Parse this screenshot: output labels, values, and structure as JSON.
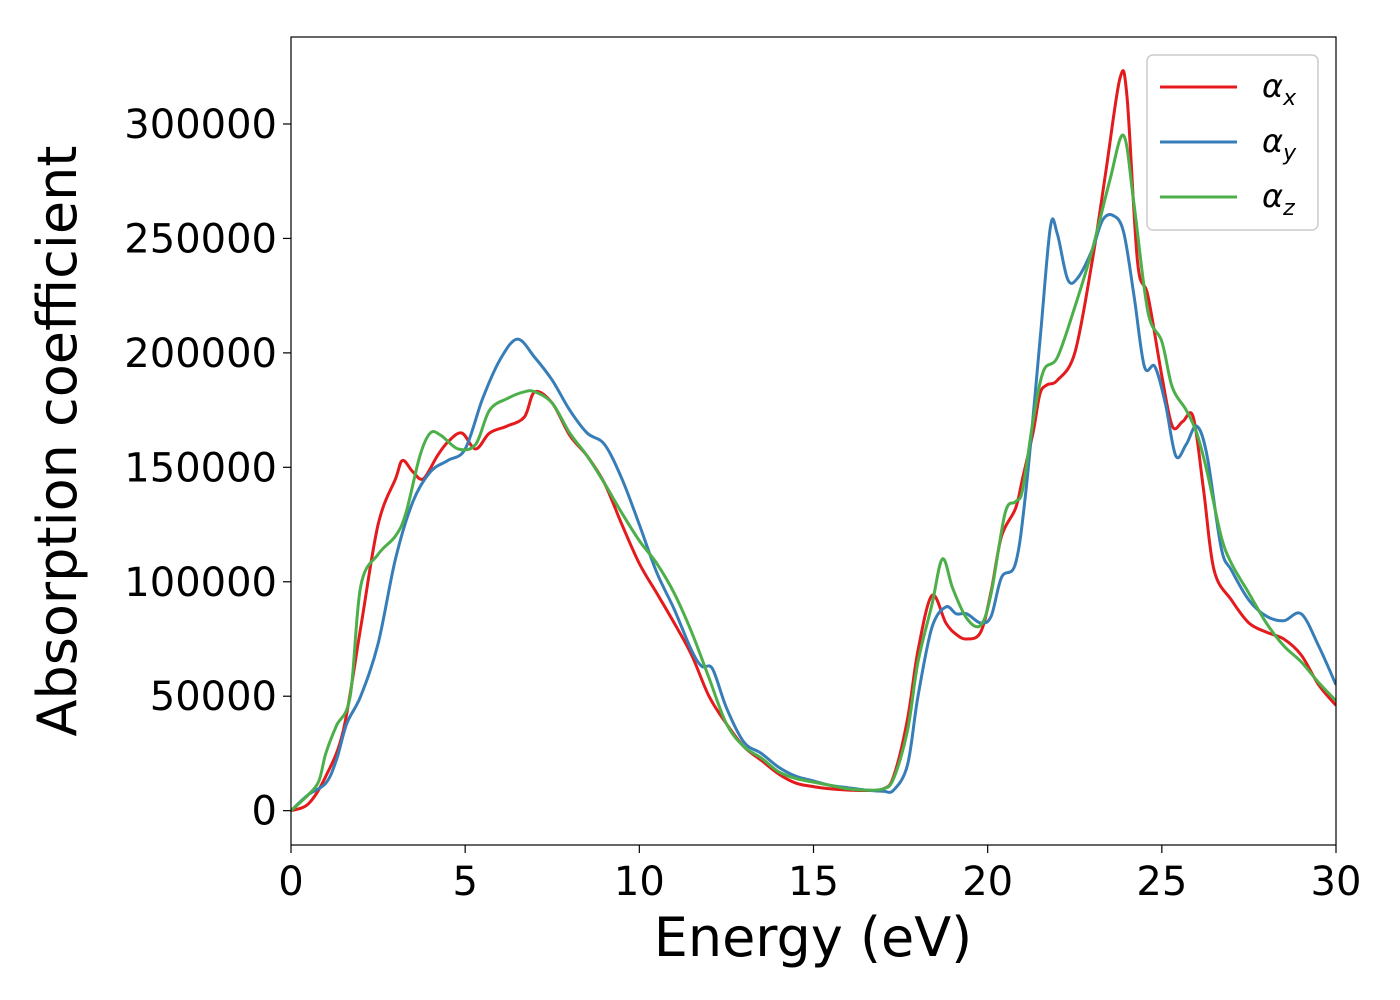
{
  "chart_data": {
    "type": "line",
    "title": "",
    "xlabel": "Energy (eV)",
    "ylabel": "Absorption coefficient",
    "xlim": [
      0,
      30
    ],
    "ylim": [
      -15000,
      338000
    ],
    "xticks": [
      0,
      5,
      10,
      15,
      20,
      25,
      30
    ],
    "yticks": [
      0,
      50000,
      100000,
      150000,
      200000,
      250000,
      300000
    ],
    "grid": false,
    "legend_position": "top-right",
    "series": [
      {
        "name": "αx",
        "symbol": "α",
        "subscript": "x",
        "color": "#e41a1c",
        "x": [
          0,
          0.5,
          1.0,
          1.5,
          2.0,
          2.5,
          3.0,
          3.2,
          3.5,
          3.8,
          4.2,
          4.5,
          4.9,
          5.3,
          5.7,
          6.2,
          6.7,
          7.0,
          7.5,
          8.0,
          8.5,
          9.0,
          9.5,
          10.0,
          10.5,
          11.0,
          11.5,
          12.0,
          12.5,
          13.0,
          13.5,
          14.0,
          14.5,
          15.0,
          15.5,
          16.0,
          16.5,
          17.0,
          17.3,
          17.7,
          18.0,
          18.4,
          18.8,
          19.1,
          19.4,
          19.8,
          20.1,
          20.4,
          20.8,
          21.0,
          21.3,
          21.5,
          21.7,
          22.0,
          22.5,
          23.0,
          23.4,
          23.8,
          24.0,
          24.3,
          24.6,
          25.0,
          25.3,
          25.6,
          25.9,
          26.2,
          26.5,
          27.0,
          27.5,
          28.0,
          28.5,
          29.0,
          29.5,
          30.0
        ],
        "y": [
          0,
          3000,
          15000,
          35000,
          80000,
          125000,
          145000,
          153000,
          148000,
          145000,
          155000,
          161000,
          165000,
          158000,
          165000,
          168000,
          172000,
          183000,
          178000,
          164000,
          155000,
          143000,
          125000,
          108000,
          95000,
          82000,
          68000,
          50000,
          38000,
          28000,
          22000,
          16000,
          12000,
          10500,
          9500,
          9000,
          8800,
          9500,
          15000,
          40000,
          70000,
          94000,
          82000,
          77000,
          75000,
          78000,
          96000,
          120000,
          132000,
          145000,
          165000,
          182000,
          186000,
          188000,
          200000,
          240000,
          280000,
          320000,
          312000,
          240000,
          225000,
          190000,
          168000,
          170000,
          172000,
          140000,
          105000,
          92000,
          82000,
          78000,
          75000,
          68000,
          55000,
          46000
        ]
      },
      {
        "name": "αy",
        "symbol": "α",
        "subscript": "y",
        "color": "#377eb8",
        "x": [
          0,
          0.5,
          1.0,
          1.3,
          1.6,
          2.0,
          2.5,
          3.0,
          3.5,
          4.0,
          4.5,
          5.0,
          5.5,
          6.0,
          6.5,
          7.0,
          7.5,
          8.0,
          8.5,
          9.0,
          9.5,
          10.0,
          10.5,
          11.0,
          11.5,
          11.8,
          12.1,
          12.5,
          13.0,
          13.5,
          14.0,
          14.5,
          15.0,
          15.5,
          16.0,
          16.5,
          17.0,
          17.3,
          17.7,
          18.0,
          18.4,
          18.8,
          19.1,
          19.4,
          19.8,
          20.1,
          20.4,
          20.8,
          21.1,
          21.5,
          21.8,
          22.0,
          22.3,
          22.6,
          23.0,
          23.3,
          23.6,
          23.9,
          24.2,
          24.5,
          24.8,
          25.1,
          25.4,
          25.7,
          26.0,
          26.3,
          26.7,
          27.0,
          27.5,
          28.0,
          28.5,
          29.0,
          29.5,
          30.0
        ],
        "y": [
          0,
          7000,
          12000,
          22000,
          38000,
          50000,
          73000,
          110000,
          135000,
          148000,
          153000,
          158000,
          180000,
          197000,
          206000,
          198000,
          188000,
          175000,
          165000,
          160000,
          145000,
          125000,
          104000,
          88000,
          70000,
          63000,
          62000,
          45000,
          30000,
          25000,
          19000,
          15000,
          13000,
          11000,
          10000,
          9000,
          8500,
          9000,
          20000,
          50000,
          80000,
          89000,
          86000,
          86000,
          82000,
          85000,
          102000,
          108000,
          140000,
          205000,
          255000,
          252000,
          232000,
          233000,
          245000,
          258000,
          260000,
          253000,
          225000,
          194000,
          194000,
          178000,
          155000,
          160000,
          168000,
          155000,
          115000,
          105000,
          92000,
          85000,
          83000,
          86000,
          72000,
          55000
        ]
      },
      {
        "name": "αz",
        "symbol": "α",
        "subscript": "z",
        "color": "#4daf4a",
        "x": [
          0,
          0.5,
          0.8,
          1.0,
          1.3,
          1.7,
          2.0,
          2.5,
          3.0,
          3.3,
          3.7,
          4.0,
          4.3,
          4.8,
          5.3,
          5.7,
          6.2,
          6.7,
          7.0,
          7.5,
          8.0,
          8.5,
          9.0,
          9.5,
          10.0,
          10.5,
          11.0,
          11.5,
          12.0,
          12.5,
          13.0,
          13.5,
          14.0,
          14.5,
          15.0,
          15.5,
          16.0,
          16.5,
          17.0,
          17.3,
          17.7,
          18.0,
          18.4,
          18.7,
          19.0,
          19.4,
          19.8,
          20.1,
          20.5,
          20.8,
          21.0,
          21.3,
          21.6,
          22.0,
          22.5,
          23.0,
          23.5,
          23.9,
          24.2,
          24.6,
          25.0,
          25.3,
          25.7,
          26.0,
          26.3,
          26.7,
          27.0,
          27.5,
          28.0,
          28.5,
          29.0,
          29.5,
          30.0
        ],
        "y": [
          0,
          7000,
          13000,
          25000,
          37000,
          50000,
          98000,
          112000,
          120000,
          130000,
          155000,
          165000,
          164000,
          158000,
          160000,
          175000,
          180000,
          183000,
          183000,
          178000,
          165000,
          155000,
          143000,
          130000,
          118000,
          108000,
          95000,
          78000,
          58000,
          38000,
          28000,
          23000,
          17000,
          14000,
          12500,
          11000,
          9500,
          9000,
          9500,
          14000,
          35000,
          65000,
          90000,
          110000,
          97000,
          84000,
          81000,
          95000,
          130000,
          135000,
          140000,
          170000,
          192000,
          198000,
          220000,
          245000,
          275000,
          295000,
          265000,
          218000,
          205000,
          185000,
          175000,
          165000,
          148000,
          120000,
          108000,
          95000,
          82000,
          72000,
          65000,
          56000,
          48000
        ]
      }
    ]
  }
}
